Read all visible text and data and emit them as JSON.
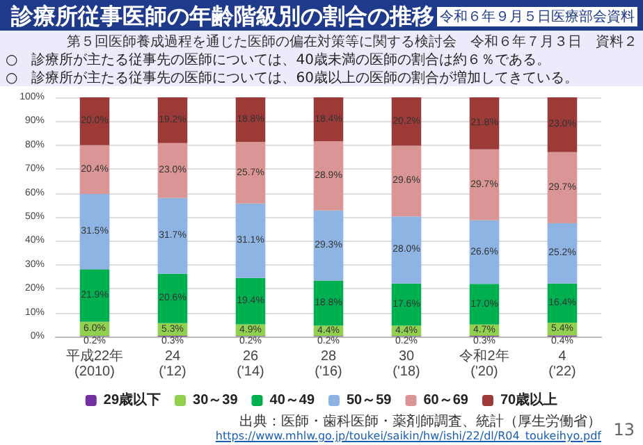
{
  "chart_data": {
    "type": "bar",
    "stacked": true,
    "title": "診療所従事医師の年齢階級別の割合の推移",
    "annotations": [
      "令和６年９月５日医療部会資料",
      "第５回医師養成過程を通じた医師の偏在対策等に関する検討会　令和６年７月３日　資料２",
      "○　診療所が主たる従事先の医師については、40歳未満の医師の割合は約６％である。",
      "○　診療所が主たる従事先の医師については、60歳以上の医師の割合が増加してきている。",
      "出典：医師・歯科医師・薬剤師調査、統計（厚生労働省）",
      "https://www.mhlw.go.jp/toukei/saikin/hw/ishi/22/dl/R04_toukeihyo.pdf",
      "13"
    ],
    "categories": [
      "平成22年\n(2010)",
      "24\n('12)",
      "26\n('14)",
      "28\n('16)",
      "30\n('18)",
      "令和2年\n('20)",
      "4\n('22)"
    ],
    "series": [
      {
        "name": "29歳以下",
        "color": "#7030a0",
        "values": [
          0.2,
          0.3,
          0.2,
          0.2,
          0.2,
          0.3,
          0.4
        ],
        "value_labels": [
          "0.2%",
          "0.3%",
          "0.2%",
          "0.2%",
          "0.2%",
          "0.3%",
          "0.4%"
        ]
      },
      {
        "name": "30～39",
        "color": "#92d050",
        "values": [
          6.0,
          5.3,
          4.9,
          4.4,
          4.4,
          4.7,
          5.4
        ],
        "value_labels": [
          "6.0%",
          "5.3%",
          "4.9%",
          "4.4%",
          "4.4%",
          "4.7%",
          "5.4%"
        ]
      },
      {
        "name": "40～49",
        "color": "#00b050",
        "values": [
          21.9,
          20.6,
          19.4,
          18.8,
          17.6,
          17.0,
          16.4
        ],
        "value_labels": [
          "21.9%",
          "20.6%",
          "19.4%",
          "18.8%",
          "17.6%",
          "17.0%",
          "16.4%"
        ]
      },
      {
        "name": "50～59",
        "color": "#8eb4e3",
        "values": [
          31.5,
          31.7,
          31.1,
          29.3,
          28.0,
          26.6,
          25.2
        ],
        "value_labels": [
          "31.5%",
          "31.7%",
          "31.1%",
          "29.3%",
          "28.0%",
          "26.6%",
          "25.2%"
        ]
      },
      {
        "name": "60～69",
        "color": "#da9694",
        "values": [
          20.4,
          23.0,
          25.7,
          28.9,
          29.6,
          29.7,
          29.7
        ],
        "value_labels": [
          "20.4%",
          "23.0%",
          "25.7%",
          "28.9%",
          "29.6%",
          "29.7%",
          "29.7%"
        ]
      },
      {
        "name": "70歳以上",
        "color": "#9b3a37",
        "values": [
          20.0,
          19.2,
          18.8,
          18.4,
          20.2,
          21.8,
          23.0
        ],
        "value_labels": [
          "20.0%",
          "19.2%",
          "18.8%",
          "18.4%",
          "20.2%",
          "21.8%",
          "23.0%"
        ]
      }
    ],
    "ylim": [
      0,
      100
    ],
    "yticks": [
      {
        "value": 0,
        "label": "0%"
      },
      {
        "value": 10,
        "label": "10%"
      },
      {
        "value": 20,
        "label": "20%"
      },
      {
        "value": 30,
        "label": "30%"
      },
      {
        "value": 40,
        "label": "40%"
      },
      {
        "value": 50,
        "label": "50%"
      },
      {
        "value": 60,
        "label": "60%"
      },
      {
        "value": 70,
        "label": "70%"
      },
      {
        "value": 80,
        "label": "80%"
      },
      {
        "value": 90,
        "label": "90%"
      },
      {
        "value": 100,
        "label": "100%"
      }
    ],
    "grid": "y",
    "legend": "bottom"
  }
}
